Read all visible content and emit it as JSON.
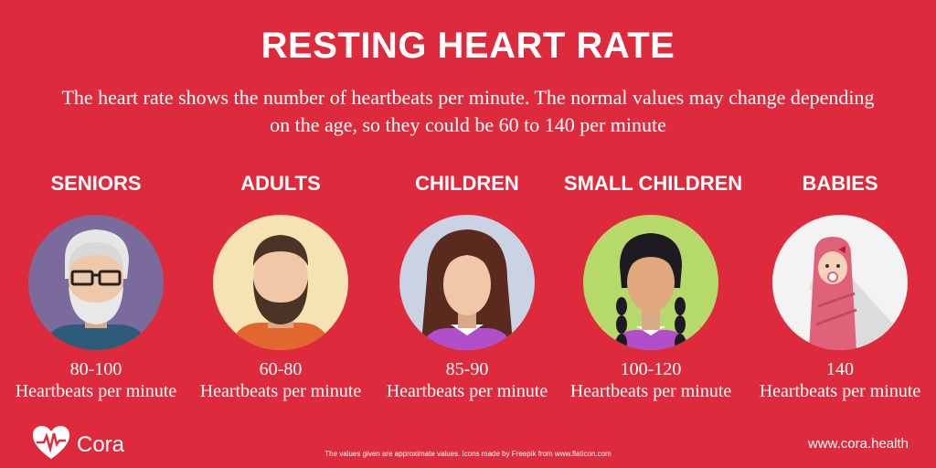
{
  "title": "RESTING HEART RATE",
  "subtitle": "The heart rate shows the number of heartbeats per minute. The normal values may change depending on the age, so they could be 60 to 140 per minute",
  "groups": [
    {
      "label": "SENIORS",
      "range": "80-100",
      "unit": "Heartbeats per minute",
      "icon": "senior-man-avatar"
    },
    {
      "label": "ADULTS",
      "range": "60-80",
      "unit": "Heartbeats per minute",
      "icon": "adult-man-avatar"
    },
    {
      "label": "CHILDREN",
      "range": "85-90",
      "unit": "Heartbeats per minute",
      "icon": "girl-avatar"
    },
    {
      "label": "SMALL CHILDREN",
      "range": "100-120",
      "unit": "Heartbeats per minute",
      "icon": "small-girl-avatar"
    },
    {
      "label": "BABIES",
      "range": "140",
      "unit": "Heartbeats per minute",
      "icon": "baby-avatar"
    }
  ],
  "footer": {
    "note": "The values given are approximate values. Icons made by Freepik from www.flaticon.com",
    "brand": "Cora",
    "website": "www.cora.health"
  },
  "colors": {
    "background": "#dd2a3c",
    "text": "#ffffff"
  }
}
